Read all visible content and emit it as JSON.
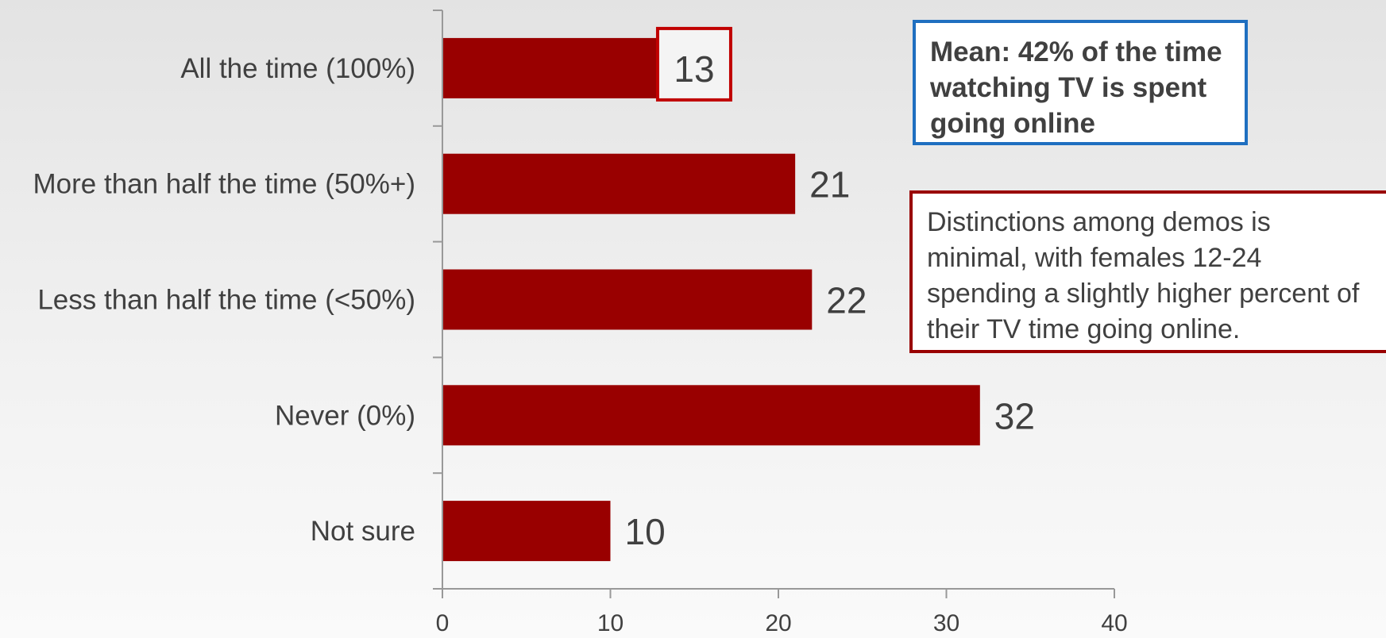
{
  "colors": {
    "bar": "#990000",
    "highlight_box": "#c00000",
    "axis": "#999999",
    "text": "#404040",
    "mean_callout_border": "#1f6fc0",
    "demos_callout_border": "#990000"
  },
  "chart_data": {
    "type": "bar",
    "orientation": "horizontal",
    "categories": [
      "All the time (100%)",
      "More than half the time (50%+)",
      "Less than half the time (<50%)",
      "Never (0%)",
      "Not sure"
    ],
    "values": [
      13,
      21,
      22,
      32,
      10
    ],
    "value_labels": [
      "13",
      "21",
      "22",
      "32",
      "10"
    ],
    "highlighted_index": 0,
    "xlim": [
      0,
      40
    ],
    "xticks": [
      0,
      10,
      20,
      30,
      40
    ],
    "xtick_labels": [
      "0",
      "10",
      "20",
      "30",
      "40"
    ],
    "grid": false,
    "annotations": [
      "Mean: 42% of the time watching TV is spent going online",
      "Distinctions among demos is minimal, with females 12-24 spending a slightly higher percent of their TV time going online."
    ]
  },
  "callouts": {
    "mean": "Mean: 42% of the time watching TV is spent going online",
    "demos": "Distinctions among demos is minimal, with females 12-24 spending a slightly higher percent of their TV time going online."
  }
}
